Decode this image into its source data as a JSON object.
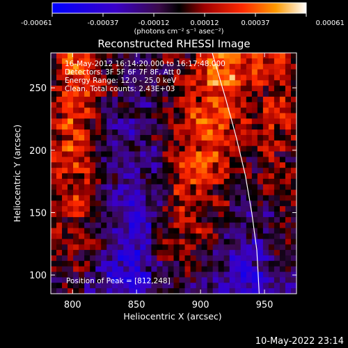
{
  "chart_data": {
    "type": "heatmap",
    "title": "Reconstructed RHESSI Image",
    "xlabel": "Heliocentric X (arcsec)",
    "ylabel": "Heliocentric Y (arcsec)",
    "xlim": [
      783,
      975
    ],
    "ylim": [
      85,
      278
    ],
    "x_ticks": [
      800,
      850,
      900,
      950
    ],
    "y_ticks": [
      100,
      150,
      200,
      250
    ],
    "colorbar": {
      "min": -0.00061,
      "max": 0.00061,
      "ticks": [
        "-0.00061",
        "-0.00037",
        "-0.00012",
        "0.00012",
        "0.00037",
        "0.00061"
      ],
      "units_label": "(photons cm⁻² s⁻¹ asec⁻²)"
    },
    "info_lines": [
      "16-May-2012 16:14:20.000 to 16:17:48.000",
      "Detectors: 3F 5F 6F 7F 8F, Att 0",
      "Energy Range: 12.0 - 25.0 keV",
      "Clean.  Total counts: 2.43E+03"
    ],
    "peak_label": "Position of Peak = [812,248]",
    "peak": [
      812,
      248
    ],
    "grid": false
  },
  "timestamp": "10-May-2022 23:14",
  "colors": {
    "background": "#000000",
    "text": "#ffffff",
    "limb_line": "#ffffff"
  }
}
